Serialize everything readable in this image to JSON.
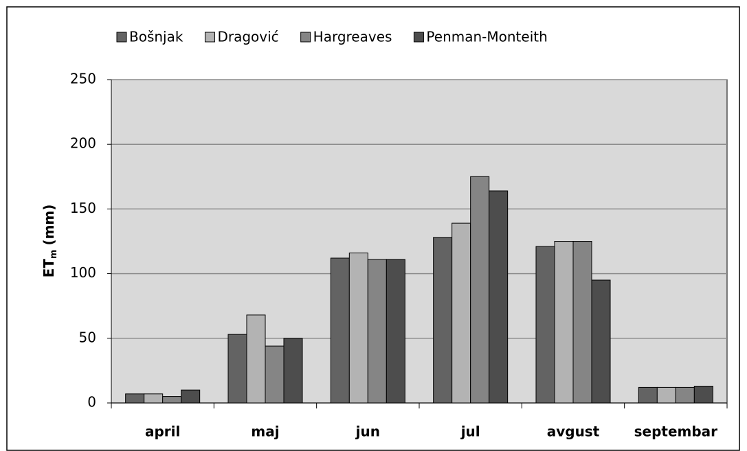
{
  "chart_data": {
    "type": "bar",
    "y_label": "ET",
    "y_label_sub": "m",
    "y_label_unit": "(mm)",
    "categories": [
      "april",
      "maj",
      "jun",
      "jul",
      "avgust",
      "septembar"
    ],
    "series": [
      {
        "name": "Bošnjak",
        "color": "#636363",
        "values": [
          7,
          53,
          112,
          128,
          121,
          12
        ]
      },
      {
        "name": "Dragović",
        "color": "#b3b3b3",
        "values": [
          7,
          68,
          116,
          139,
          125,
          12
        ]
      },
      {
        "name": "Hargreaves",
        "color": "#858585",
        "values": [
          5,
          44,
          111,
          175,
          125,
          12
        ]
      },
      {
        "name": "Penman-Monteith",
        "color": "#4d4d4d",
        "values": [
          10,
          50,
          111,
          164,
          95,
          13
        ]
      }
    ],
    "ylim": [
      0,
      250
    ],
    "yticks": [
      0,
      50,
      100,
      150,
      200,
      250
    ],
    "grid": true,
    "legend": "top"
  }
}
